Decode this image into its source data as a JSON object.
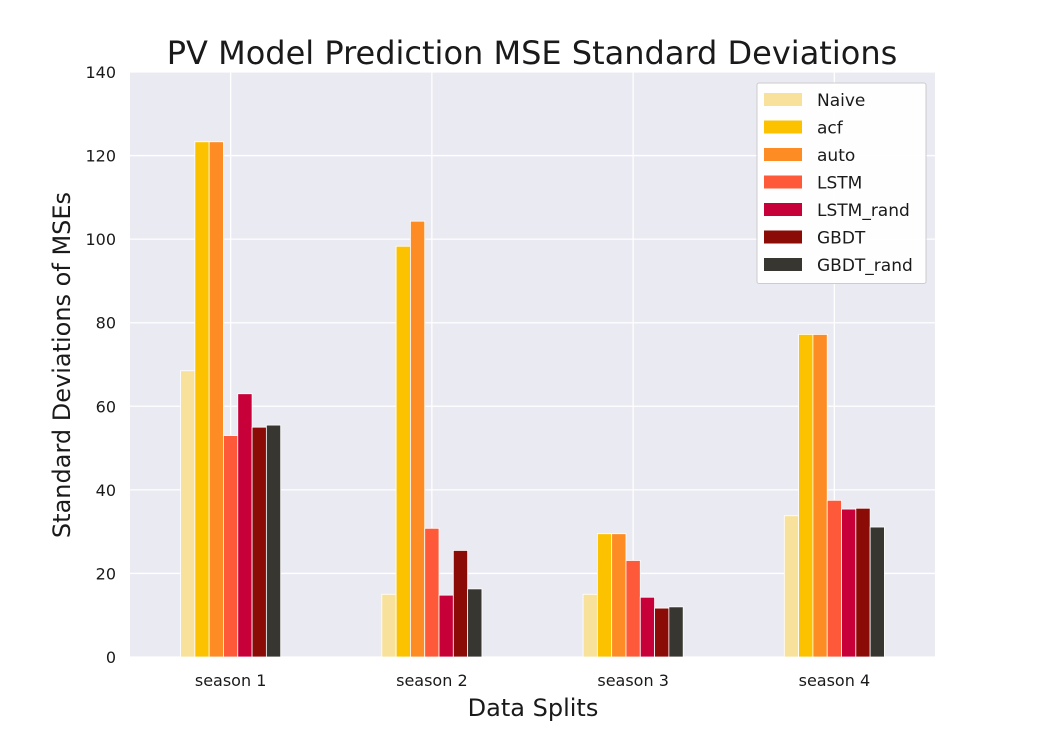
{
  "chart_data": {
    "type": "bar",
    "title": "PV Model Prediction MSE Standard Deviations",
    "xlabel": "Data Splits",
    "ylabel": "Standard Deviations of MSEs",
    "categories": [
      "season 1",
      "season 2",
      "season 3",
      "season 4"
    ],
    "ylim": [
      0,
      140
    ],
    "yticks": [
      0,
      20,
      40,
      60,
      80,
      100,
      120,
      140
    ],
    "grid": true,
    "legend_position": "top-right",
    "background": "#eaeaf2",
    "series": [
      {
        "name": "Naive",
        "color": "#f8e19a",
        "values": [
          68.5,
          15.0,
          15.0,
          33.8
        ]
      },
      {
        "name": "acf",
        "color": "#fcc200",
        "values": [
          123.3,
          98.3,
          29.5,
          77.2
        ]
      },
      {
        "name": "auto",
        "color": "#fc8c23",
        "values": [
          123.3,
          104.3,
          29.5,
          77.2
        ]
      },
      {
        "name": "LSTM",
        "color": "#fe5a39",
        "values": [
          53.0,
          30.8,
          23.1,
          37.5
        ]
      },
      {
        "name": "LSTM_rand",
        "color": "#c8003a",
        "values": [
          63.0,
          14.8,
          14.3,
          35.4
        ]
      },
      {
        "name": "GBDT",
        "color": "#8b0c06",
        "values": [
          55.0,
          25.5,
          11.7,
          35.6
        ]
      },
      {
        "name": "GBDT_rand",
        "color": "#383630",
        "values": [
          55.5,
          16.3,
          12.0,
          31.1
        ]
      }
    ]
  }
}
